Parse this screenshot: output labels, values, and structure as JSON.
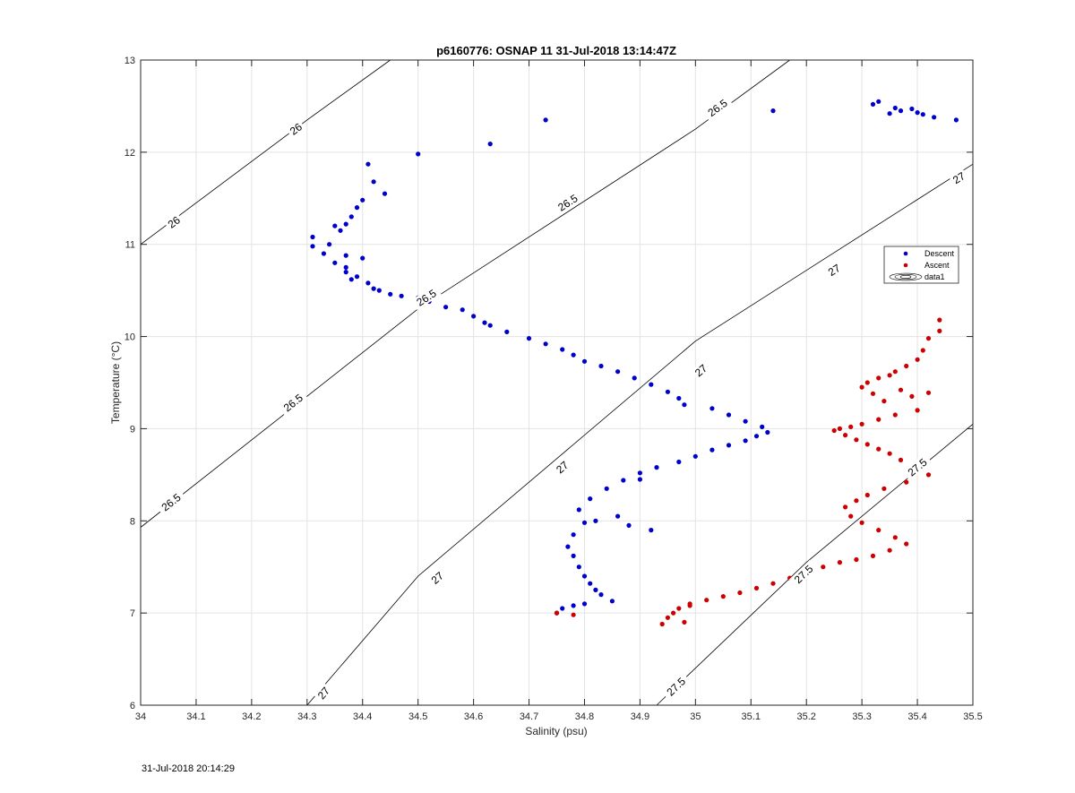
{
  "chart_data": {
    "type": "scatter",
    "title": "p6160776: OSNAP 11 31-Jul-2018 13:14:47Z",
    "xlabel": "Salinity (psu)",
    "ylabel": "Temperature (°C)",
    "xlim": [
      34,
      35.5
    ],
    "ylim": [
      6,
      13
    ],
    "xticks": [
      "34",
      "34.1",
      "34.2",
      "34.3",
      "34.4",
      "34.5",
      "34.6",
      "34.7",
      "34.8",
      "34.9",
      "35",
      "35.1",
      "35.2",
      "35.3",
      "35.4",
      "35.5"
    ],
    "yticks": [
      "6",
      "7",
      "8",
      "9",
      "10",
      "11",
      "12",
      "13"
    ],
    "grid": true,
    "legend_position": "right",
    "legend": [
      "Descent",
      "Ascent",
      "data1"
    ],
    "colors": {
      "descent": "#0000cc",
      "ascent": "#cc0000",
      "contour": "#000000",
      "grid": "#e3e3e3"
    },
    "contours": [
      {
        "level": 26,
        "label": "26",
        "points": [
          [
            34,
            11.0
          ],
          [
            34.3,
            12.35
          ],
          [
            34.45,
            13
          ]
        ]
      },
      {
        "level": 26.5,
        "label": "26.5",
        "points": [
          [
            34,
            7.93
          ],
          [
            34.5,
            10.3
          ],
          [
            35,
            12.25
          ],
          [
            35.17,
            13
          ]
        ]
      },
      {
        "level": 27,
        "label": "27",
        "points": [
          [
            34.3,
            6.0
          ],
          [
            34.5,
            7.4
          ],
          [
            35,
            9.95
          ],
          [
            35.5,
            11.87
          ]
        ]
      },
      {
        "level": 27.5,
        "label": "27.5",
        "points": [
          [
            34.93,
            6.0
          ],
          [
            35.2,
            7.55
          ],
          [
            35.5,
            9.05
          ]
        ]
      }
    ],
    "contour_label_positions": [
      {
        "text": "26",
        "x": 34.06,
        "y": 11.24
      },
      {
        "text": "26",
        "x": 34.28,
        "y": 12.25
      },
      {
        "text": "26.5",
        "x": 34.055,
        "y": 8.2
      },
      {
        "text": "26.5",
        "x": 34.275,
        "y": 9.28
      },
      {
        "text": "26.5",
        "x": 34.515,
        "y": 10.42
      },
      {
        "text": "26.5",
        "x": 34.77,
        "y": 11.45
      },
      {
        "text": "26.5",
        "x": 35.04,
        "y": 12.48
      },
      {
        "text": "27",
        "x": 34.33,
        "y": 6.13
      },
      {
        "text": "27",
        "x": 34.535,
        "y": 7.38
      },
      {
        "text": "27",
        "x": 34.76,
        "y": 8.58
      },
      {
        "text": "27",
        "x": 35.01,
        "y": 9.63
      },
      {
        "text": "27",
        "x": 35.25,
        "y": 10.72
      },
      {
        "text": "27",
        "x": 35.475,
        "y": 11.72
      },
      {
        "text": "27.5",
        "x": 34.965,
        "y": 6.2
      },
      {
        "text": "27.5",
        "x": 35.195,
        "y": 7.42
      },
      {
        "text": "27.5",
        "x": 35.4,
        "y": 8.58
      }
    ],
    "series": [
      {
        "name": "Descent",
        "x": [
          35.33,
          35.32,
          35.36,
          35.35,
          35.37,
          35.39,
          35.4,
          35.41,
          35.43,
          35.47,
          35.14,
          34.73,
          34.63,
          34.5,
          34.41,
          34.42,
          34.44,
          34.4,
          34.39,
          34.38,
          34.37,
          34.36,
          34.35,
          34.34,
          34.31,
          34.31,
          34.33,
          34.35,
          34.37,
          34.38,
          34.37,
          34.4,
          34.37,
          34.39,
          34.41,
          34.42,
          34.43,
          34.45,
          34.47,
          34.5,
          34.52,
          34.55,
          34.58,
          34.6,
          34.62,
          34.63,
          34.66,
          34.7,
          34.73,
          34.76,
          34.78,
          34.8,
          34.83,
          34.86,
          34.89,
          34.92,
          34.95,
          34.97,
          34.98,
          35.03,
          35.06,
          35.09,
          35.12,
          35.13,
          35.11,
          35.09,
          35.06,
          35.03,
          35.0,
          34.97,
          34.93,
          34.9,
          34.87,
          34.84,
          34.81,
          34.79,
          34.8,
          34.78,
          34.77,
          34.78,
          34.79,
          34.8,
          34.81,
          34.82,
          34.83,
          34.85,
          34.8,
          34.78,
          34.76,
          34.75,
          34.88,
          34.92,
          34.9,
          34.86,
          34.82
        ],
        "y": [
          12.55,
          12.52,
          12.48,
          12.42,
          12.45,
          12.47,
          12.43,
          12.41,
          12.38,
          12.35,
          12.45,
          12.35,
          12.09,
          11.98,
          11.87,
          11.68,
          11.55,
          11.48,
          11.4,
          11.3,
          11.22,
          11.15,
          11.2,
          11.0,
          11.08,
          10.98,
          10.9,
          10.8,
          10.7,
          10.62,
          10.88,
          10.85,
          10.75,
          10.65,
          10.58,
          10.52,
          10.5,
          10.46,
          10.44,
          10.42,
          10.38,
          10.32,
          10.29,
          10.22,
          10.15,
          10.12,
          10.05,
          9.98,
          9.92,
          9.86,
          9.8,
          9.73,
          9.68,
          9.62,
          9.55,
          9.48,
          9.4,
          9.33,
          9.26,
          9.22,
          9.15,
          9.08,
          9.02,
          8.96,
          8.92,
          8.87,
          8.82,
          8.77,
          8.7,
          8.64,
          8.58,
          8.52,
          8.44,
          8.35,
          8.24,
          8.12,
          7.98,
          7.85,
          7.72,
          7.62,
          7.5,
          7.4,
          7.32,
          7.25,
          7.2,
          7.13,
          7.1,
          7.08,
          7.05,
          7.0,
          7.95,
          7.9,
          8.45,
          8.05,
          8.0
        ]
      },
      {
        "name": "Ascent",
        "x": [
          35.44,
          35.44,
          35.42,
          35.41,
          35.4,
          35.38,
          35.36,
          35.35,
          35.33,
          35.31,
          35.3,
          35.32,
          35.34,
          35.37,
          35.39,
          35.42,
          35.4,
          35.36,
          35.33,
          35.3,
          35.28,
          35.26,
          35.25,
          35.27,
          35.29,
          35.31,
          35.33,
          35.35,
          35.37,
          35.4,
          35.42,
          35.38,
          35.34,
          35.31,
          35.29,
          35.27,
          35.28,
          35.3,
          35.33,
          35.36,
          35.38,
          35.35,
          35.32,
          35.29,
          35.26,
          35.23,
          35.2,
          35.17,
          35.14,
          35.11,
          35.08,
          35.05,
          35.02,
          34.99,
          34.97,
          34.96,
          34.95,
          34.94,
          34.99,
          34.98,
          34.78,
          34.75
        ],
        "y": [
          10.18,
          10.06,
          9.98,
          9.85,
          9.75,
          9.68,
          9.62,
          9.58,
          9.55,
          9.5,
          9.45,
          9.38,
          9.3,
          9.42,
          9.35,
          9.39,
          9.2,
          9.15,
          9.1,
          9.05,
          9.02,
          9.0,
          8.98,
          8.93,
          8.88,
          8.83,
          8.78,
          8.73,
          8.66,
          8.57,
          8.5,
          8.42,
          8.35,
          8.28,
          8.22,
          8.15,
          8.05,
          7.98,
          7.9,
          7.82,
          7.75,
          7.68,
          7.62,
          7.58,
          7.55,
          7.5,
          7.45,
          7.38,
          7.32,
          7.27,
          7.22,
          7.18,
          7.14,
          7.1,
          7.05,
          7.0,
          6.95,
          6.88,
          7.08,
          6.9,
          6.98,
          7.0
        ]
      }
    ]
  },
  "footer": {
    "timestamp": "31-Jul-2018 20:14:29"
  }
}
